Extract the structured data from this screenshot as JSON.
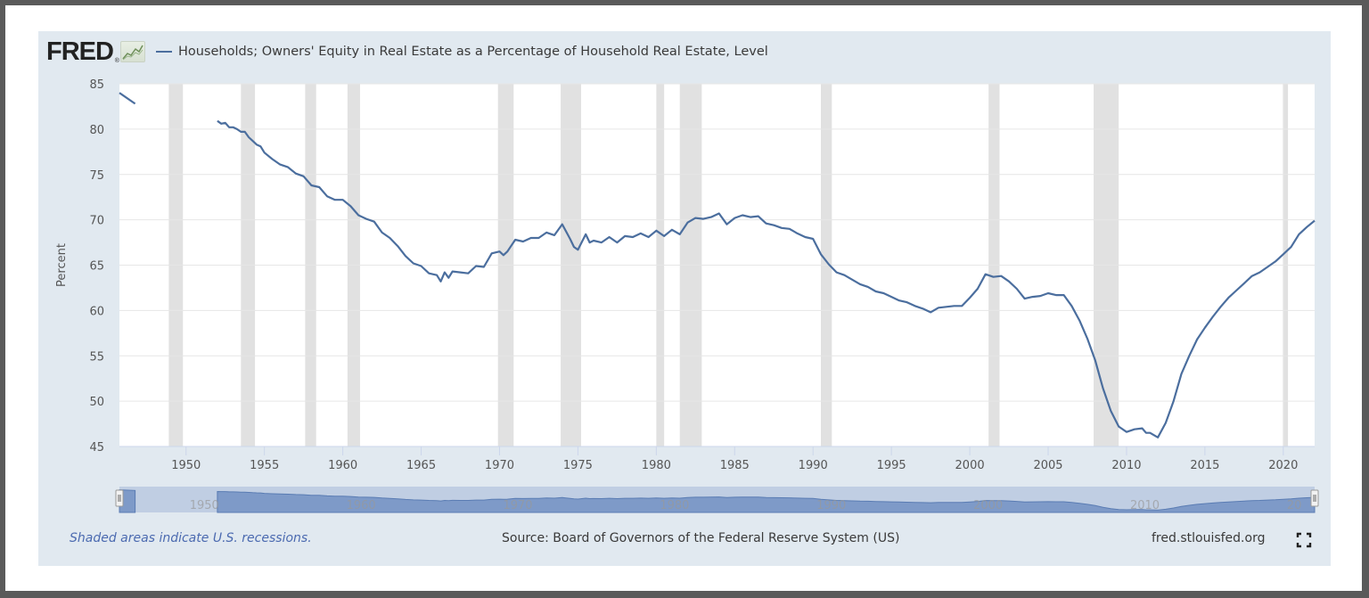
{
  "header": {
    "logo_text": "FRED",
    "logo_reg": "®",
    "logo_icon": "chart-line-icon",
    "series_title": "Households; Owners' Equity in Real Estate as a Percentage of Household Real Estate, Level"
  },
  "footer": {
    "recession_note": "Shaded areas indicate U.S. recessions.",
    "source": "Source: Board of Governors of the Federal Reserve System (US)",
    "site": "fred.stlouisfed.org",
    "fullscreen_icon": "fullscreen-icon"
  },
  "colors": {
    "line": "#4b6e9e",
    "recession": "#e1e1e1",
    "panel_bg": "#e1e9f0",
    "navigator_fill": "#7e9ac8",
    "navigator_bg": "#c0cee3"
  },
  "chart_data": {
    "type": "line",
    "title": "Households; Owners' Equity in Real Estate as a Percentage of Household Real Estate, Level",
    "xlabel": "",
    "ylabel": "Percent",
    "xlim": [
      1945.75,
      2022.0
    ],
    "ylim": [
      45,
      85
    ],
    "yticks": [
      45,
      50,
      55,
      60,
      65,
      70,
      75,
      80,
      85
    ],
    "xticks": [
      1950,
      1955,
      1960,
      1965,
      1970,
      1975,
      1980,
      1985,
      1990,
      1995,
      2000,
      2005,
      2010,
      2015,
      2020
    ],
    "grid": true,
    "legend": "top-left",
    "navigator_ticks": [
      1950,
      1960,
      1970,
      1980,
      1990,
      2000,
      2010,
      2020
    ],
    "navigator_tick_labels": [
      "1950",
      "1960",
      "1970",
      "1980",
      "1990",
      "2000",
      "2010",
      "20"
    ],
    "recessions": [
      [
        1948.9,
        1949.8
      ],
      [
        1953.5,
        1954.4
      ],
      [
        1957.6,
        1958.3
      ],
      [
        1960.3,
        1961.1
      ],
      [
        1969.9,
        1970.9
      ],
      [
        1973.9,
        1975.2
      ],
      [
        1980.0,
        1980.5
      ],
      [
        1981.5,
        1982.9
      ],
      [
        1990.5,
        1991.2
      ],
      [
        2001.2,
        2001.9
      ],
      [
        2007.9,
        2009.5
      ],
      [
        2020.0,
        2020.3
      ]
    ],
    "series": [
      {
        "name": "Households; Owners' Equity in Real Estate as a Percentage of Household Real Estate, Level",
        "segments": [
          {
            "x": [
              1945.75,
              1946.75
            ],
            "y": [
              84.0,
              82.8
            ]
          },
          {
            "x": [
              1952.0,
              1952.25,
              1952.5,
              1952.75,
              1953.0,
              1953.25,
              1953.5,
              1953.75,
              1954.0,
              1954.25,
              1954.5,
              1954.75,
              1955.0,
              1955.5,
              1956.0,
              1956.5,
              1957.0,
              1957.5,
              1958.0,
              1958.5,
              1959.0,
              1959.5,
              1960.0,
              1960.5,
              1961.0,
              1961.5,
              1962.0,
              1962.5,
              1963.0,
              1963.5,
              1964.0,
              1964.5,
              1965.0,
              1965.5,
              1966.0,
              1966.25,
              1966.5,
              1966.75,
              1967.0,
              1967.5,
              1968.0,
              1968.5,
              1969.0,
              1969.5,
              1970.0,
              1970.25,
              1970.5,
              1971.0,
              1971.5,
              1972.0,
              1972.5,
              1973.0,
              1973.5,
              1974.0,
              1974.5,
              1974.75,
              1975.0,
              1975.5,
              1975.75,
              1976.0,
              1976.5,
              1977.0,
              1977.5,
              1978.0,
              1978.5,
              1979.0,
              1979.5,
              1980.0,
              1980.5,
              1981.0,
              1981.5,
              1982.0,
              1982.5,
              1983.0,
              1983.5,
              1984.0,
              1984.5,
              1985.0,
              1985.5,
              1986.0,
              1986.5,
              1987.0,
              1987.5,
              1988.0,
              1988.5,
              1989.0,
              1989.5,
              1990.0,
              1990.5,
              1991.0,
              1991.5,
              1992.0,
              1992.5,
              1993.0,
              1993.5,
              1994.0,
              1994.5,
              1995.0,
              1995.5,
              1996.0,
              1996.5,
              1997.0,
              1997.5,
              1998.0,
              1998.5,
              1999.0,
              1999.5,
              2000.0,
              2000.5,
              2001.0,
              2001.5,
              2002.0,
              2002.5,
              2003.0,
              2003.5,
              2004.0,
              2004.5,
              2005.0,
              2005.5,
              2006.0,
              2006.5,
              2007.0,
              2007.5,
              2008.0,
              2008.5,
              2009.0,
              2009.5,
              2010.0,
              2010.5,
              2011.0,
              2011.25,
              2011.5,
              2012.0,
              2012.5,
              2013.0,
              2013.5,
              2014.0,
              2014.5,
              2015.0,
              2015.5,
              2016.0,
              2016.5,
              2017.0,
              2017.5,
              2018.0,
              2018.5,
              2019.0,
              2019.5,
              2020.0,
              2020.5,
              2021.0,
              2021.5,
              2022.0
            ],
            "y": [
              80.9,
              80.6,
              80.7,
              80.2,
              80.2,
              80.0,
              79.7,
              79.7,
              79.1,
              78.7,
              78.3,
              78.1,
              77.4,
              76.7,
              76.1,
              75.8,
              75.1,
              74.8,
              73.8,
              73.6,
              72.6,
              72.2,
              72.2,
              71.5,
              70.5,
              70.1,
              69.8,
              68.6,
              68.0,
              67.1,
              66.0,
              65.2,
              64.9,
              64.1,
              63.9,
              63.2,
              64.2,
              63.6,
              64.3,
              64.2,
              64.1,
              64.9,
              64.8,
              66.3,
              66.5,
              66.1,
              66.5,
              67.8,
              67.6,
              68.0,
              68.0,
              68.6,
              68.3,
              69.5,
              67.9,
              67.0,
              66.7,
              68.4,
              67.5,
              67.7,
              67.5,
              68.1,
              67.5,
              68.2,
              68.1,
              68.5,
              68.1,
              68.8,
              68.2,
              68.9,
              68.4,
              69.7,
              70.2,
              70.1,
              70.3,
              70.7,
              69.5,
              70.2,
              70.5,
              70.3,
              70.4,
              69.6,
              69.4,
              69.1,
              69.0,
              68.5,
              68.1,
              67.9,
              66.2,
              65.1,
              64.2,
              63.9,
              63.4,
              62.9,
              62.6,
              62.1,
              61.9,
              61.5,
              61.1,
              60.9,
              60.5,
              60.2,
              59.8,
              60.3,
              60.4,
              60.5,
              60.5,
              61.4,
              62.4,
              64.0,
              63.7,
              63.8,
              63.2,
              62.4,
              61.3,
              61.5,
              61.6,
              61.9,
              61.7,
              61.7,
              60.5,
              58.9,
              56.9,
              54.5,
              51.4,
              48.9,
              47.2,
              46.6,
              46.9,
              47.0,
              46.5,
              46.5,
              46.0,
              47.6,
              50.0,
              53.0,
              55.0,
              56.8,
              58.1,
              59.3,
              60.4,
              61.4,
              62.2,
              63.0,
              63.8,
              64.2,
              64.8,
              65.4,
              66.2,
              67.0,
              68.4,
              69.2,
              69.9
            ]
          }
        ]
      }
    ]
  }
}
